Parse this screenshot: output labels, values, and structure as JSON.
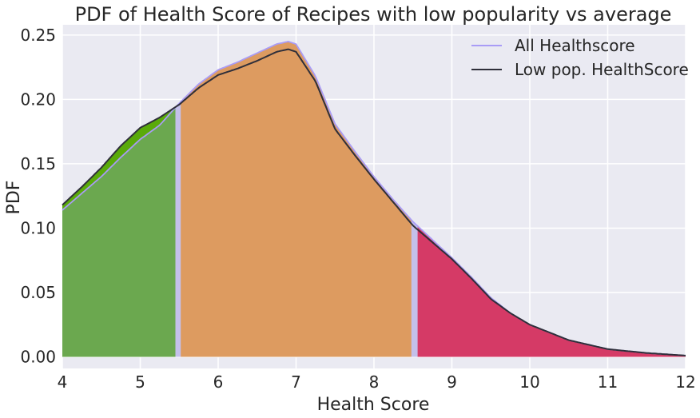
{
  "chart_data": {
    "type": "area",
    "title": "PDF of Health Score of Recipes with low popularity vs average",
    "xlabel": "Health Score",
    "ylabel": "PDF",
    "xlim": [
      4,
      12
    ],
    "ylim": [
      -0.009,
      0.258
    ],
    "x_ticks": [
      "4",
      "5",
      "6",
      "7",
      "8",
      "9",
      "10",
      "11",
      "12"
    ],
    "y_ticks": [
      "0.00",
      "0.05",
      "0.10",
      "0.15",
      "0.20",
      "0.25"
    ],
    "grid": true,
    "legend_position": "top-right",
    "colors": {
      "background": "#eaeaf2",
      "grid": "#ffffff",
      "low_region": "#6ba84f",
      "mid_region": "#dd9b60",
      "high_region": "#d53a66",
      "gap_band": "#c4c0ea",
      "low_highlight": "#5aaa0a"
    },
    "series": [
      {
        "name": "All Healthscore",
        "color": "#a99cf6",
        "x": [
          4.0,
          4.25,
          4.5,
          4.75,
          5.0,
          5.25,
          5.5,
          5.75,
          6.0,
          6.25,
          6.5,
          6.75,
          6.9,
          7.0,
          7.25,
          7.5,
          7.75,
          8.0,
          8.25,
          8.5,
          8.75,
          9.0,
          9.25,
          9.5,
          9.75,
          10.0,
          10.5,
          11.0,
          11.5,
          12.0
        ],
        "y": [
          0.114,
          0.127,
          0.14,
          0.155,
          0.169,
          0.18,
          0.197,
          0.212,
          0.223,
          0.229,
          0.236,
          0.243,
          0.245,
          0.243,
          0.218,
          0.181,
          0.16,
          0.14,
          0.122,
          0.105,
          0.091,
          0.077,
          0.062,
          0.046,
          0.034,
          0.025,
          0.013,
          0.006,
          0.003,
          0.001
        ]
      },
      {
        "name": "Low pop. HealthScore",
        "color": "#2f2f3a",
        "x": [
          4.0,
          4.25,
          4.5,
          4.75,
          5.0,
          5.25,
          5.5,
          5.75,
          6.0,
          6.25,
          6.5,
          6.75,
          6.9,
          7.0,
          7.25,
          7.5,
          7.75,
          8.0,
          8.25,
          8.5,
          8.75,
          9.0,
          9.25,
          9.5,
          9.75,
          10.0,
          10.5,
          11.0,
          11.5,
          12.0
        ],
        "y": [
          0.118,
          0.132,
          0.147,
          0.164,
          0.178,
          0.186,
          0.196,
          0.209,
          0.219,
          0.224,
          0.23,
          0.237,
          0.239,
          0.237,
          0.214,
          0.177,
          0.157,
          0.138,
          0.12,
          0.102,
          0.089,
          0.076,
          0.061,
          0.045,
          0.034,
          0.025,
          0.013,
          0.006,
          0.003,
          0.001
        ]
      }
    ],
    "fill_regions": [
      {
        "from": 4.0,
        "to": 5.45,
        "color_key": "low_region"
      },
      {
        "from": 5.52,
        "to": 8.48,
        "color_key": "mid_region"
      },
      {
        "from": 8.56,
        "to": 12.0,
        "color_key": "high_region"
      }
    ]
  }
}
